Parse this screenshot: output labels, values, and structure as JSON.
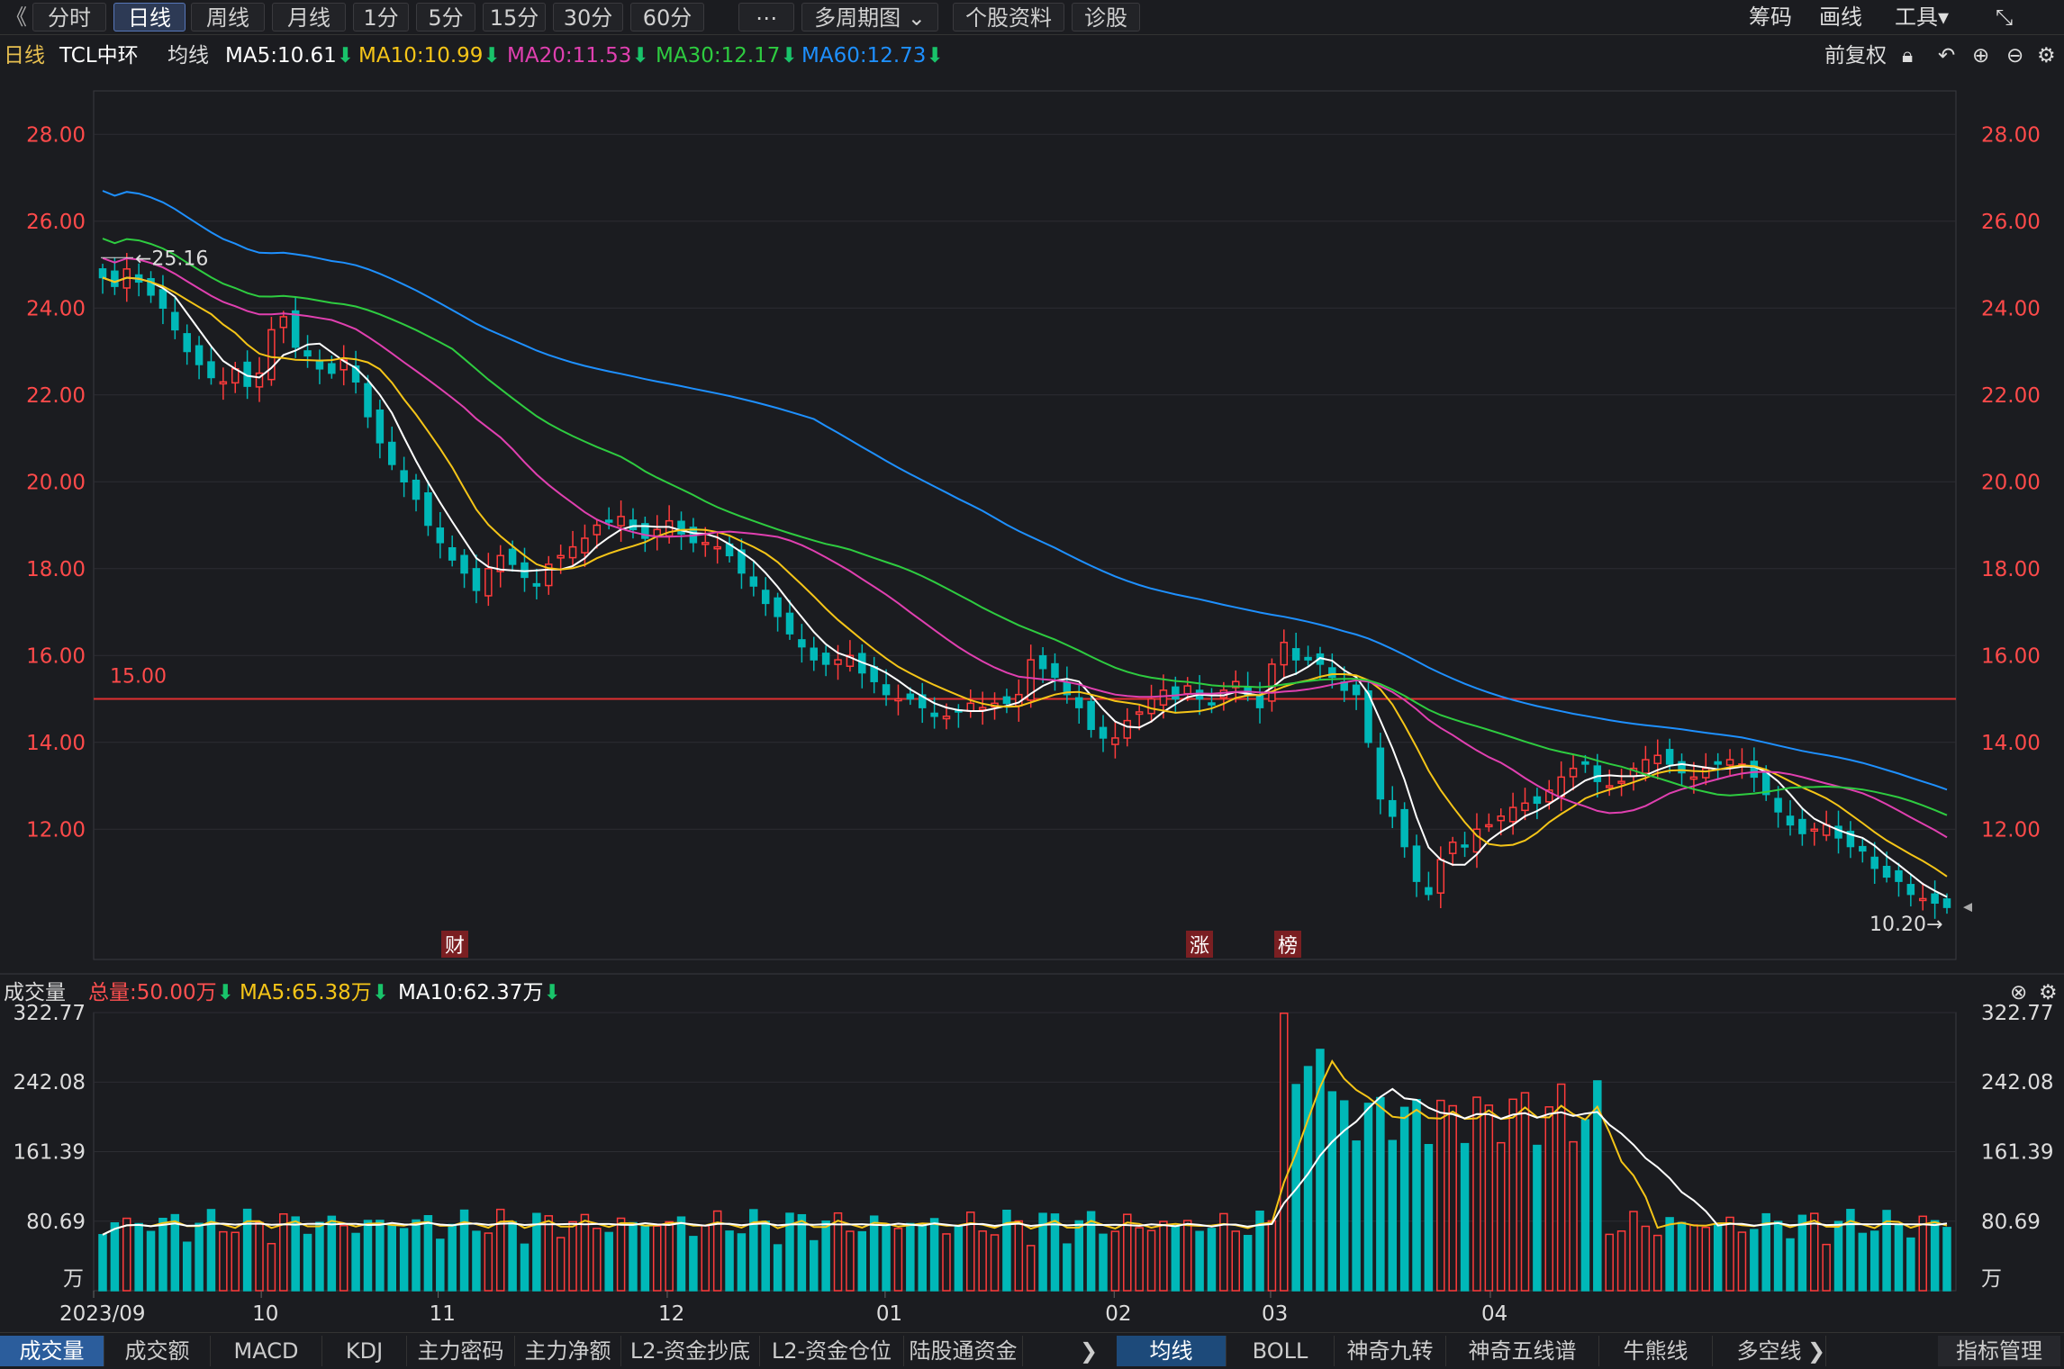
{
  "toolbar": {
    "back": "《",
    "periods": [
      "分时",
      "日线",
      "周线",
      "月线",
      "1分",
      "5分",
      "15分",
      "30分",
      "60分",
      "⋯",
      "多周期图 ⌄",
      "个股资料",
      "诊股"
    ],
    "active": "日线",
    "right": [
      "筹码",
      "画线",
      "工具▾",
      "⤡"
    ]
  },
  "info": {
    "period": "日线",
    "stock": "TCL中环",
    "ma_label": "均线",
    "ma5": "MA5:10.61",
    "ma10": "MA10:10.99",
    "ma20": "MA20:11.53",
    "ma30": "MA30:12.17",
    "ma60": "MA60:12.73",
    "fq": "前复权",
    "colors": {
      "ma5": "#ffffff",
      "ma10": "#f5c518",
      "ma20": "#e040b0",
      "ma30": "#2ecc40",
      "ma60": "#1e90ff"
    }
  },
  "price_axis": {
    "ticks": [
      "28.00",
      "26.00",
      "24.00",
      "22.00",
      "20.00",
      "18.00",
      "16.00",
      "14.00",
      "12.00"
    ],
    "min": 9.0,
    "max": 29.0
  },
  "marks": {
    "high_label": "25.16",
    "last_label": "10.20",
    "hline_label": "15.00",
    "hline": 15.0,
    "tags": [
      "财",
      "涨",
      "榜"
    ]
  },
  "volume": {
    "title": "成交量",
    "total": "总量:50.00万",
    "ma5": "MA5:65.38万",
    "ma10": "MA10:62.37万",
    "ticks": [
      "322.77",
      "242.08",
      "161.39",
      "80.69"
    ],
    "unit": "万",
    "max": 322.77
  },
  "date_axis": [
    "2023/09",
    "10",
    "11",
    "12",
    "01",
    "02",
    "03",
    "04"
  ],
  "bottom_tabs_left": [
    "成交量",
    "成交额",
    "MACD",
    "KDJ",
    "主力密码",
    "主力净额",
    "L2-资金抄底",
    "L2-资金仓位",
    "陆股通资金"
  ],
  "bottom_tabs_right": [
    "均线",
    "BOLL",
    "神奇九转",
    "神奇五线谱",
    "牛熊线",
    "多空线"
  ],
  "bottom_right": "指标管理",
  "chart_data": {
    "type": "candlestick",
    "title": "TCL中环 日线",
    "start": "2023-09",
    "end": "2024-04",
    "close_series_approx": [
      24.7,
      24.5,
      24.9,
      24.6,
      24.3,
      24.0,
      23.5,
      23.0,
      22.7,
      22.4,
      22.3,
      22.6,
      22.2,
      22.5,
      23.5,
      23.8,
      23.1,
      22.9,
      22.6,
      22.5,
      22.8,
      22.3,
      21.5,
      20.9,
      20.4,
      20.0,
      19.6,
      19.0,
      18.6,
      18.2,
      17.9,
      17.5,
      18.0,
      18.3,
      18.1,
      17.8,
      17.6,
      18.1,
      18.3,
      18.5,
      18.7,
      19.0,
      19.1,
      19.2,
      18.9,
      18.7,
      18.9,
      19.1,
      18.8,
      18.6,
      18.6,
      18.5,
      18.3,
      17.9,
      17.6,
      17.2,
      16.9,
      16.5,
      16.2,
      15.9,
      15.8,
      15.9,
      16.0,
      15.6,
      15.4,
      15.1,
      15.0,
      15.0,
      14.8,
      14.6,
      14.6,
      14.7,
      14.9,
      14.8,
      14.9,
      14.9,
      15.1,
      15.9,
      15.7,
      15.5,
      15.1,
      14.8,
      14.3,
      14.1,
      14.1,
      14.5,
      14.7,
      15.0,
      15.2,
      15.0,
      15.3,
      15.0,
      14.9,
      15.2,
      15.4,
      15.1,
      14.8,
      15.8,
      16.3,
      15.9,
      15.9,
      15.8,
      15.5,
      15.2,
      15.1,
      14.0,
      12.7,
      12.3,
      11.6,
      10.8,
      10.5,
      11.3,
      11.7,
      11.6,
      12.0,
      12.1,
      12.3,
      12.5,
      12.6,
      12.6,
      12.9,
      13.2,
      13.4,
      13.5,
      13.1,
      13.0,
      13.1,
      13.4,
      13.6,
      13.7,
      13.5,
      13.3,
      13.2,
      13.4,
      13.5,
      13.6,
      13.5,
      13.2,
      12.8,
      12.4,
      12.1,
      11.9,
      12.0,
      12.1,
      11.8,
      11.6,
      11.5,
      11.1,
      10.9,
      10.8,
      10.5,
      10.4,
      10.3,
      10.2
    ],
    "ma5_last": 10.61,
    "ma10_last": 10.99,
    "ma20_last": 11.53,
    "ma30_last": 12.17,
    "ma60_last": 12.73,
    "high": 25.16,
    "last": 10.2,
    "volume_total": "50.00万"
  }
}
